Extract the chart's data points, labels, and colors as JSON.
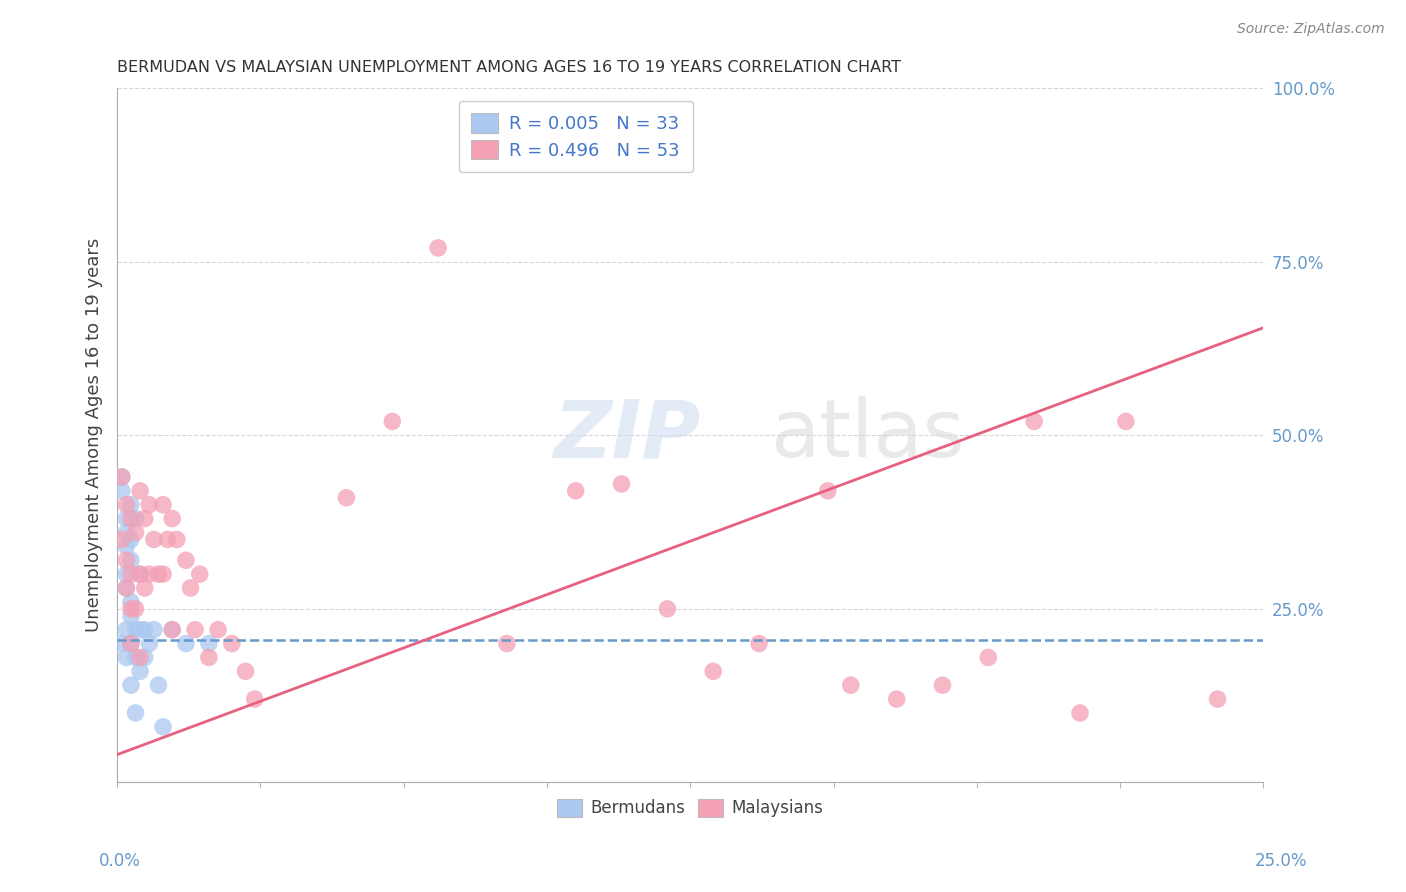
{
  "title": "BERMUDAN VS MALAYSIAN UNEMPLOYMENT AMONG AGES 16 TO 19 YEARS CORRELATION CHART",
  "source": "Source: ZipAtlas.com",
  "ylabel": "Unemployment Among Ages 16 to 19 years",
  "xlim": [
    0.0,
    0.25
  ],
  "ylim": [
    0.0,
    1.0
  ],
  "legend_bermudan": "R = 0.005   N = 33",
  "legend_malaysian": "R = 0.496   N = 53",
  "bermudan_color": "#aac8f0",
  "malaysian_color": "#f4a0b5",
  "bermudan_line_color": "#6699cc",
  "malaysian_line_color": "#e86080",
  "background_color": "#ffffff",
  "grid_color": "#cccccc",
  "berm_line_y0": 0.205,
  "berm_line_y1": 0.205,
  "mal_line_y0": 0.04,
  "mal_line_y1": 0.655,
  "berm_x": [
    0.001,
    0.001,
    0.001,
    0.002,
    0.002,
    0.002,
    0.002,
    0.002,
    0.002,
    0.002,
    0.003,
    0.003,
    0.003,
    0.003,
    0.003,
    0.003,
    0.003,
    0.004,
    0.004,
    0.004,
    0.004,
    0.005,
    0.005,
    0.005,
    0.006,
    0.006,
    0.007,
    0.008,
    0.009,
    0.01,
    0.012,
    0.015,
    0.02
  ],
  "berm_y": [
    0.44,
    0.42,
    0.2,
    0.38,
    0.36,
    0.34,
    0.3,
    0.28,
    0.22,
    0.18,
    0.4,
    0.35,
    0.32,
    0.26,
    0.24,
    0.2,
    0.14,
    0.38,
    0.22,
    0.18,
    0.1,
    0.3,
    0.22,
    0.16,
    0.22,
    0.18,
    0.2,
    0.22,
    0.14,
    0.08,
    0.22,
    0.2,
    0.2
  ],
  "mal_x": [
    0.001,
    0.001,
    0.002,
    0.002,
    0.002,
    0.003,
    0.003,
    0.003,
    0.003,
    0.004,
    0.004,
    0.005,
    0.005,
    0.005,
    0.006,
    0.006,
    0.007,
    0.007,
    0.008,
    0.009,
    0.01,
    0.01,
    0.011,
    0.012,
    0.012,
    0.013,
    0.015,
    0.016,
    0.017,
    0.018,
    0.02,
    0.022,
    0.025,
    0.028,
    0.03,
    0.05,
    0.06,
    0.07,
    0.085,
    0.1,
    0.11,
    0.12,
    0.13,
    0.14,
    0.155,
    0.16,
    0.17,
    0.18,
    0.19,
    0.2,
    0.21,
    0.22,
    0.24
  ],
  "mal_y": [
    0.44,
    0.35,
    0.4,
    0.32,
    0.28,
    0.38,
    0.3,
    0.25,
    0.2,
    0.36,
    0.25,
    0.42,
    0.3,
    0.18,
    0.38,
    0.28,
    0.4,
    0.3,
    0.35,
    0.3,
    0.4,
    0.3,
    0.35,
    0.38,
    0.22,
    0.35,
    0.32,
    0.28,
    0.22,
    0.3,
    0.18,
    0.22,
    0.2,
    0.16,
    0.12,
    0.41,
    0.52,
    0.77,
    0.2,
    0.42,
    0.43,
    0.25,
    0.16,
    0.2,
    0.42,
    0.14,
    0.12,
    0.14,
    0.18,
    0.52,
    0.1,
    0.52,
    0.12
  ]
}
